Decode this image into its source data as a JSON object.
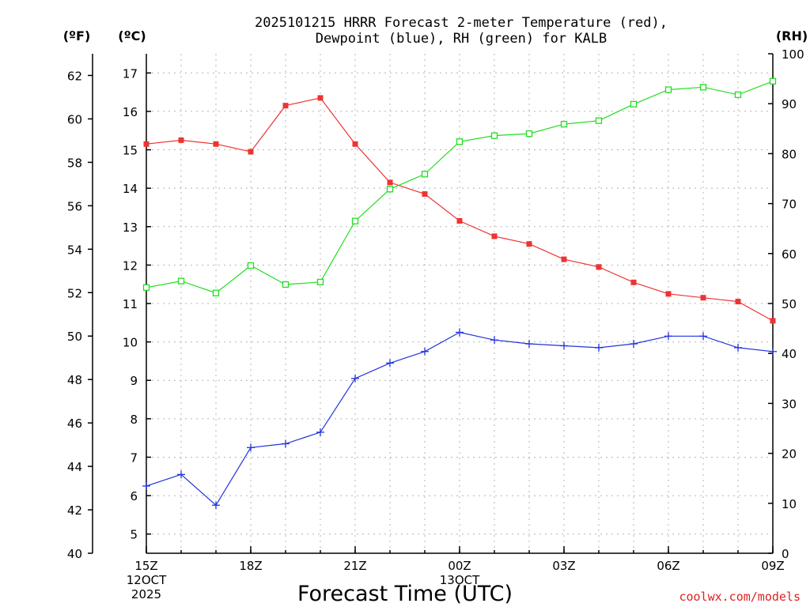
{
  "chart_data": {
    "type": "line",
    "title_line1": "2025101215 HRRR Forecast 2-meter Temperature (red),",
    "title_line2": "Dewpoint (blue), RH (green) for KALB",
    "unit_f": "(ºF)",
    "unit_c": "(ºC)",
    "unit_rh": "(RH)",
    "xlabel": "Forecast Time (UTC)",
    "credit": "coolwx.com/models",
    "x_hours": [
      0,
      1,
      2,
      3,
      4,
      5,
      6,
      7,
      8,
      9,
      10,
      11,
      12,
      13,
      14,
      15,
      16,
      17,
      18
    ],
    "x_ticks": [
      {
        "hour": 0,
        "lines": [
          "15Z",
          "12OCT",
          "2025"
        ]
      },
      {
        "hour": 3,
        "lines": [
          "18Z"
        ]
      },
      {
        "hour": 6,
        "lines": [
          "21Z"
        ]
      },
      {
        "hour": 9,
        "lines": [
          "00Z",
          "13OCT"
        ]
      },
      {
        "hour": 12,
        "lines": [
          "03Z"
        ]
      },
      {
        "hour": 15,
        "lines": [
          "06Z"
        ]
      },
      {
        "hour": 18,
        "lines": [
          "09Z"
        ]
      }
    ],
    "xlim": [
      0,
      18
    ],
    "c_axis": {
      "range": [
        4.5,
        17.5
      ],
      "ticks": [
        "5",
        "6",
        "7",
        "8",
        "9",
        "10",
        "11",
        "12",
        "13",
        "14",
        "15",
        "16",
        "17"
      ]
    },
    "f_axis": {
      "range": [
        40,
        63
      ],
      "ticks": [
        "40",
        "42",
        "44",
        "46",
        "48",
        "50",
        "52",
        "54",
        "56",
        "58",
        "60",
        "62"
      ]
    },
    "rh_axis": {
      "range": [
        0,
        100
      ],
      "ticks": [
        "0",
        "10",
        "20",
        "30",
        "40",
        "50",
        "60",
        "70",
        "80",
        "90",
        "100"
      ]
    },
    "series": [
      {
        "name": "2-meter Temperature",
        "axis": "c",
        "color": "#ee3333",
        "marker": "filled-square",
        "values": [
          15.15,
          15.25,
          15.15,
          14.95,
          16.15,
          16.35,
          15.15,
          14.15,
          13.85,
          13.15,
          12.75,
          12.55,
          12.15,
          11.95,
          11.55,
          11.25,
          11.15,
          11.05,
          10.55
        ]
      },
      {
        "name": "Dewpoint",
        "axis": "c",
        "color": "#2233dd",
        "marker": "plus",
        "values": [
          6.25,
          6.55,
          5.75,
          7.25,
          7.35,
          7.65,
          9.05,
          9.45,
          9.75,
          10.25,
          10.05,
          9.95,
          9.9,
          9.85,
          9.95,
          10.15,
          10.15,
          9.85,
          9.75
        ]
      },
      {
        "name": "RH",
        "axis": "rh",
        "color": "#22dd22",
        "marker": "open-square",
        "values": [
          53.2,
          54.5,
          52.1,
          57.6,
          53.8,
          54.3,
          66.5,
          72.9,
          75.9,
          82.4,
          83.6,
          84.0,
          85.9,
          86.6,
          89.9,
          92.8,
          93.3,
          91.8,
          94.5
        ]
      }
    ]
  }
}
